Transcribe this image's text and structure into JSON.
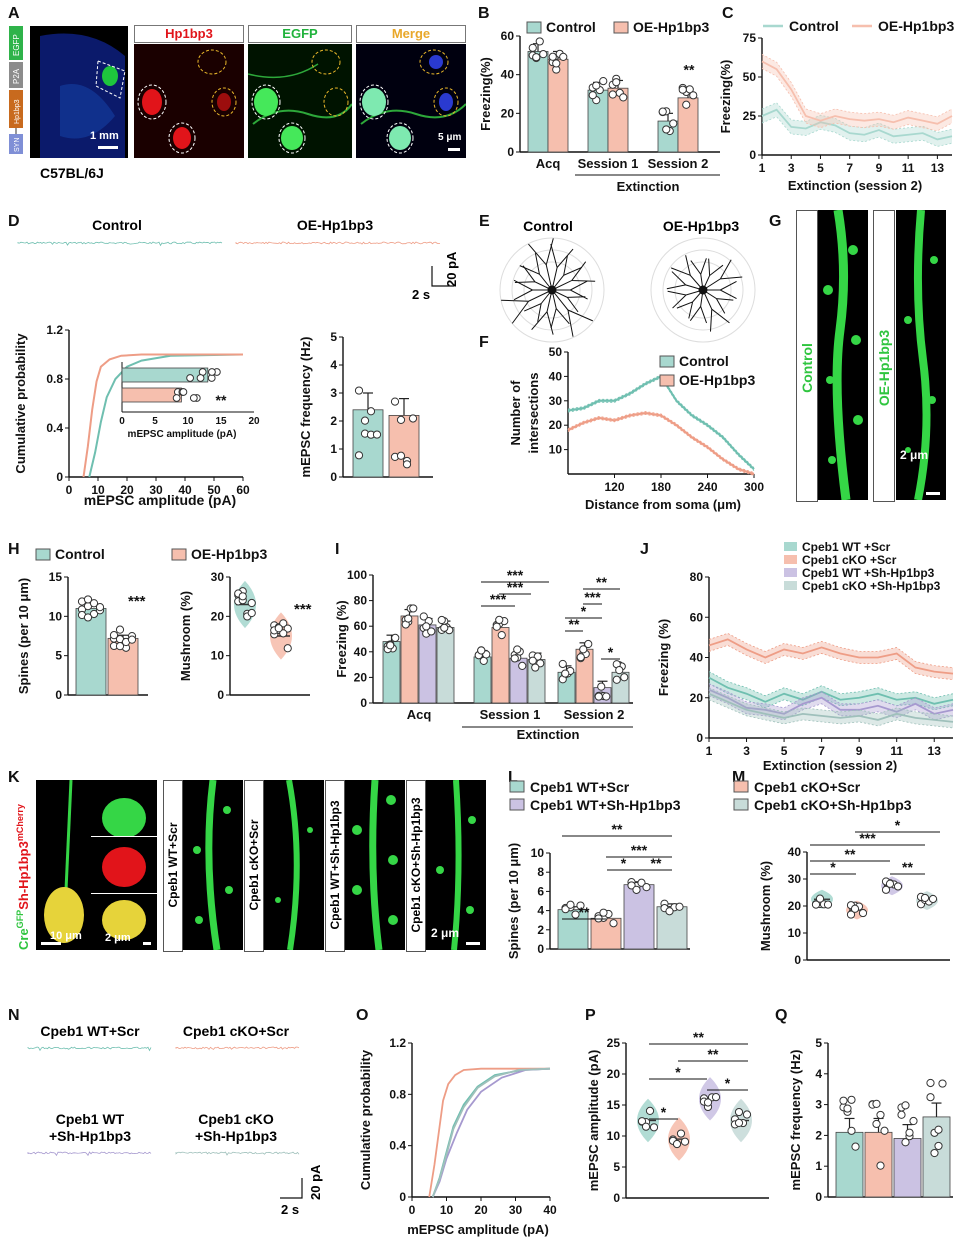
{
  "colors": {
    "control": "#a8d8cf",
    "control_dark": "#6fbfb0",
    "oe": "#f6bfae",
    "oe_dark": "#ee9d86",
    "cpeb_wt_scr": "#a8d8cf",
    "cpeb_cko_scr": "#f6bfae",
    "cpeb_wt_sh": "#cbc2e3",
    "cpeb_cko_sh": "#c8dcd9"
  },
  "panels": {
    "A": {
      "letter": "A",
      "strain": "C57BL/6J",
      "scale1": "1 mm",
      "scale2": "5 μm",
      "channels": [
        "Hp1bp3",
        "EGFP",
        "Merge"
      ],
      "construct": [
        "EGFP",
        "P2A",
        "Hp1bp3",
        "SYN"
      ]
    },
    "B": {
      "letter": "B"
    },
    "C": {
      "letter": "C"
    },
    "D": {
      "letter": "D",
      "trace_left": "Control",
      "trace_right": "OE-Hp1bp3",
      "scale_x": "2 s",
      "scale_y": "20 pA"
    },
    "E": {
      "letter": "E",
      "left": "Control",
      "right": "OE-Hp1bp3"
    },
    "F": {
      "letter": "F"
    },
    "G": {
      "letter": "G",
      "left": "Control",
      "right": "OE-Hp1bp3",
      "scale": "2 μm"
    },
    "H": {
      "letter": "H"
    },
    "I": {
      "letter": "I"
    },
    "J": {
      "letter": "J"
    },
    "K": {
      "letter": "K",
      "side": "CreGFPSh-Hp1bp3mCherry",
      "side_parts": [
        "Cre",
        "GFP",
        "Sh-Hp1bp3",
        "mCherry"
      ],
      "scale1": "10 μm",
      "scale2": "2 μm",
      "scale3": "2 μm",
      "groups": [
        "Cpeb1 WT+Scr",
        "Cpeb1 cKO+Scr",
        "Cpeb1 WT+Sh-Hp1bp3",
        "Cpeb1 cKO+Sh-Hp1bp3"
      ]
    },
    "L": {
      "letter": "L"
    },
    "M": {
      "letter": "M"
    },
    "N": {
      "letter": "N",
      "labels": [
        "Cpeb1 WT+Scr",
        "Cpeb1 cKO+Scr",
        "Cpeb1 WT",
        "+Sh-Hp1bp3",
        "Cpeb1 cKO",
        "+Sh-Hp1bp3"
      ],
      "scale_x": "2 s",
      "scale_y": "20 pA"
    },
    "O": {
      "letter": "O"
    },
    "P": {
      "letter": "P"
    },
    "Q": {
      "letter": "Q"
    }
  },
  "chart_data": [
    {
      "panel": "B",
      "type": "bar",
      "ylabel": "Freezing(%)",
      "ylim": [
        0,
        60
      ],
      "yticks": [
        0,
        20,
        40,
        60
      ],
      "categories": [
        "Acq",
        "Session 1",
        "Session 2"
      ],
      "group_label": "Extinction",
      "series": [
        {
          "name": "Control",
          "values": [
            52,
            32,
            16
          ]
        },
        {
          "name": "OE-Hp1bp3",
          "values": [
            48,
            33,
            28
          ]
        }
      ],
      "annotations": [
        {
          "category": "Session 2",
          "text": "**"
        }
      ]
    },
    {
      "panel": "C",
      "type": "line",
      "xlabel": "Extinction (session 2)",
      "ylabel": "Freezing(%)",
      "ylim": [
        0,
        75
      ],
      "yticks": [
        0,
        25,
        50,
        75
      ],
      "xticks": [
        1,
        3,
        5,
        7,
        9,
        11,
        13
      ],
      "x": [
        1,
        2,
        3,
        4,
        5,
        6,
        7,
        8,
        9,
        10,
        11,
        12,
        13,
        14
      ],
      "series": [
        {
          "name": "Control",
          "values": [
            25,
            29,
            18,
            17,
            21,
            19,
            14,
            13,
            16,
            12,
            13,
            14,
            10,
            12
          ]
        },
        {
          "name": "OE-Hp1bp3",
          "values": [
            60,
            55,
            42,
            25,
            22,
            25,
            23,
            22,
            23,
            21,
            24,
            22,
            20,
            25
          ]
        }
      ]
    },
    {
      "panel": "D",
      "type": "line",
      "xlabel": "mEPSC  amplitude (pA)",
      "ylabel": "Cumulative probability",
      "xlim": [
        0,
        60
      ],
      "ylim": [
        0,
        1.2
      ],
      "xticks": [
        0,
        10,
        20,
        30,
        40,
        50,
        60
      ],
      "yticks": [
        0.0,
        0.4,
        0.8,
        1.2
      ],
      "series": [
        {
          "name": "Control",
          "x": [
            7,
            9,
            11,
            13,
            16,
            20,
            25,
            35,
            60
          ],
          "values": [
            0,
            0.2,
            0.45,
            0.65,
            0.8,
            0.9,
            0.95,
            0.99,
            1.0
          ]
        },
        {
          "name": "OE-Hp1bp3",
          "x": [
            5,
            6.5,
            8,
            9.5,
            11,
            14,
            18,
            25,
            60
          ],
          "values": [
            0,
            0.25,
            0.55,
            0.78,
            0.9,
            0.96,
            0.99,
            1.0,
            1.0
          ]
        }
      ],
      "inset": {
        "type": "bar",
        "xlabel": "mEPSC amplitude (pA)",
        "xlim": [
          0,
          20
        ],
        "xticks": [
          0,
          5,
          10,
          15,
          20
        ],
        "series": [
          {
            "name": "Control",
            "values": [
              13
            ]
          },
          {
            "name": "OE-Hp1bp3",
            "values": [
              9
            ]
          }
        ],
        "annotations": [
          {
            "text": "**"
          }
        ]
      }
    },
    {
      "panel": "D2",
      "type": "bar",
      "ylabel": "mEPSC frequency (Hz)",
      "ylim": [
        0,
        5
      ],
      "yticks": [
        0,
        1,
        2,
        3,
        4,
        5
      ],
      "series": [
        {
          "name": "Control",
          "values": [
            2.4
          ]
        },
        {
          "name": "OE-Hp1bp3",
          "values": [
            2.2
          ]
        }
      ]
    },
    {
      "panel": "F",
      "type": "line",
      "xlabel": "Distance from soma (μm)",
      "ylabel": "Number of intersections",
      "xlim": [
        60,
        300
      ],
      "ylim": [
        0,
        50
      ],
      "xticks": [
        120,
        180,
        240,
        300
      ],
      "yticks": [
        10,
        20,
        30,
        40,
        50
      ],
      "x": [
        60,
        80,
        100,
        120,
        140,
        160,
        180,
        200,
        220,
        240,
        260,
        280,
        300
      ],
      "series": [
        {
          "name": "Control",
          "values": [
            26,
            27,
            30,
            30,
            33,
            37,
            40,
            30,
            24,
            20,
            15,
            8,
            2
          ]
        },
        {
          "name": "OE-Hp1bp3",
          "values": [
            18,
            21,
            23,
            22,
            24,
            25,
            24,
            20,
            15,
            11,
            6,
            2,
            0
          ]
        }
      ]
    },
    {
      "panel": "H1",
      "type": "bar",
      "ylabel": "Spines (per 10 μm)",
      "ylim": [
        0,
        15
      ],
      "yticks": [
        0,
        5,
        10,
        15
      ],
      "series": [
        {
          "name": "Control",
          "values": [
            11
          ]
        },
        {
          "name": "OE-Hp1bp3",
          "values": [
            7.2
          ]
        }
      ],
      "annotations": [
        {
          "text": "***"
        }
      ]
    },
    {
      "panel": "H2",
      "type": "scatter",
      "ylabel": "Mushroom (%)",
      "ylim": [
        0,
        30
      ],
      "yticks": [
        0,
        10,
        20,
        30
      ],
      "series": [
        {
          "name": "Control",
          "values": [
            23
          ]
        },
        {
          "name": "OE-Hp1bp3",
          "values": [
            15
          ]
        }
      ],
      "annotations": [
        {
          "text": "***"
        }
      ]
    },
    {
      "panel": "I",
      "type": "bar",
      "ylabel": "Freezing (%)",
      "ylim": [
        0,
        100
      ],
      "yticks": [
        0,
        20,
        40,
        60,
        80,
        100
      ],
      "categories": [
        "Acq",
        "Session 1",
        "Session 2"
      ],
      "group_label": "Extinction",
      "series": [
        {
          "name": "Cpeb1 WT +Scr",
          "values": [
            48,
            36,
            24
          ]
        },
        {
          "name": "Cpeb1 cKO +Scr",
          "values": [
            68,
            59,
            42
          ]
        },
        {
          "name": "Cpeb1 WT +Sh-Hp1bp3",
          "values": [
            61,
            35,
            12
          ]
        },
        {
          "name": "Cpeb1 cKO +Sh-Hp1bp3",
          "values": [
            59,
            34,
            24
          ]
        }
      ],
      "annotations": [
        "***",
        "***",
        "***",
        "**",
        "***",
        "*",
        "**",
        "*"
      ]
    },
    {
      "panel": "J",
      "type": "line",
      "xlabel": "Extinction (session 2)",
      "ylabel": "Freezing (%)",
      "ylim": [
        0,
        80
      ],
      "yticks": [
        0,
        20,
        40,
        60,
        80
      ],
      "xticks": [
        1,
        3,
        5,
        7,
        9,
        11,
        13
      ],
      "x": [
        1,
        2,
        3,
        4,
        5,
        6,
        7,
        8,
        9,
        10,
        11,
        12,
        13,
        14
      ],
      "series": [
        {
          "name": "Cpeb1 WT +Scr",
          "values": [
            30,
            25,
            22,
            18,
            22,
            19,
            23,
            19,
            20,
            22,
            19,
            20,
            17,
            19
          ]
        },
        {
          "name": "Cpeb1 cKO +Scr",
          "values": [
            46,
            49,
            44,
            40,
            44,
            42,
            45,
            42,
            40,
            40,
            42,
            35,
            33,
            32
          ]
        },
        {
          "name": "Cpeb1 WT +Sh-Hp1bp3",
          "values": [
            24,
            20,
            15,
            14,
            12,
            17,
            20,
            14,
            14,
            16,
            13,
            17,
            12,
            14
          ]
        },
        {
          "name": "Cpeb1 cKO +Sh-Hp1bp3",
          "values": [
            22,
            18,
            14,
            12,
            10,
            12,
            11,
            10,
            11,
            9,
            12,
            10,
            9,
            8
          ]
        }
      ]
    },
    {
      "panel": "L",
      "type": "bar",
      "ylabel": "Spines (per 10 μm)",
      "ylim": [
        0,
        10
      ],
      "yticks": [
        0,
        2,
        4,
        6,
        8,
        10
      ],
      "series": [
        {
          "name": "Cpeb1 WT+Scr",
          "values": [
            4.1
          ]
        },
        {
          "name": "Cpeb1 cKO+Scr",
          "values": [
            3.2
          ]
        },
        {
          "name": "Cpeb1 WT+Sh-Hp1bp3",
          "values": [
            6.7
          ]
        },
        {
          "name": "Cpeb1 cKO+Sh-Hp1bp3",
          "values": [
            4.4
          ]
        }
      ],
      "annotations": [
        "**",
        "**",
        "***",
        "*",
        "**"
      ]
    },
    {
      "panel": "M",
      "type": "scatter",
      "ylabel": "Mushroom (%)",
      "ylim": [
        0,
        40
      ],
      "yticks": [
        0,
        10,
        20,
        30,
        40
      ],
      "series": [
        {
          "name": "Cpeb1 WT+Scr",
          "values": [
            22.5
          ]
        },
        {
          "name": "Cpeb1 cKO+Scr",
          "values": [
            18.5
          ]
        },
        {
          "name": "Cpeb1 WT+Sh-Hp1bp3",
          "values": [
            27.5
          ]
        },
        {
          "name": "Cpeb1 cKO+Sh-Hp1bp3",
          "values": [
            22
          ]
        }
      ],
      "annotations": [
        "*",
        "***",
        "**",
        "*",
        "**"
      ]
    },
    {
      "panel": "O",
      "type": "line",
      "xlabel": "mEPSC amplitude (pA)",
      "ylabel": "Cumulative probability",
      "xlim": [
        0,
        40
      ],
      "ylim": [
        0,
        1.2
      ],
      "xticks": [
        0,
        10,
        20,
        30,
        40
      ],
      "yticks": [
        0.0,
        0.4,
        0.8,
        1.2
      ],
      "series": [
        {
          "name": "Cpeb1 WT+Scr",
          "x": [
            6,
            8,
            10,
            12,
            15,
            19,
            24,
            32,
            40
          ],
          "values": [
            0,
            0.15,
            0.35,
            0.55,
            0.72,
            0.86,
            0.95,
            0.99,
            1.0
          ]
        },
        {
          "name": "Cpeb1 cKO+Scr",
          "x": [
            5,
            6.5,
            8,
            9,
            10.5,
            12.5,
            15,
            20,
            40
          ],
          "values": [
            0,
            0.25,
            0.55,
            0.75,
            0.88,
            0.95,
            0.99,
            1.0,
            1.0
          ]
        },
        {
          "name": "Cpeb1 WT+Sh-Hp1bp3",
          "x": [
            6,
            8,
            10,
            13,
            16,
            20,
            26,
            33,
            40
          ],
          "values": [
            0,
            0.12,
            0.3,
            0.5,
            0.68,
            0.82,
            0.93,
            0.99,
            1.0
          ]
        },
        {
          "name": "Cpeb1 cKO+Sh-Hp1bp3",
          "x": [
            6,
            8,
            10,
            12,
            15,
            19,
            24,
            31,
            40
          ],
          "values": [
            0,
            0.14,
            0.33,
            0.53,
            0.7,
            0.85,
            0.94,
            0.99,
            1.0
          ]
        }
      ]
    },
    {
      "panel": "P",
      "type": "scatter",
      "ylabel": "mEPSC amplitude (pA)",
      "ylim": [
        0,
        25
      ],
      "yticks": [
        0,
        5,
        10,
        15,
        20,
        25
      ],
      "series": [
        {
          "name": "Cpeb1 WT+Scr",
          "values": [
            12.5
          ]
        },
        {
          "name": "Cpeb1 cKO+Scr",
          "values": [
            9.5
          ]
        },
        {
          "name": "Cpeb1 WT+Sh-Hp1bp3",
          "values": [
            16
          ]
        },
        {
          "name": "Cpeb1 cKO+Sh-Hp1bp3",
          "values": [
            12.5
          ]
        }
      ],
      "annotations": [
        "**",
        "**",
        "*",
        "*",
        "*"
      ]
    },
    {
      "panel": "Q",
      "type": "bar",
      "ylabel": "mEPSC frequency (Hz)",
      "ylim": [
        0,
        5
      ],
      "yticks": [
        0,
        1,
        2,
        3,
        4,
        5
      ],
      "series": [
        {
          "name": "Cpeb1 WT+Scr",
          "values": [
            2.1
          ]
        },
        {
          "name": "Cpeb1 cKO+Scr",
          "values": [
            2.1
          ]
        },
        {
          "name": "Cpeb1 WT+Sh-Hp1bp3",
          "values": [
            1.9
          ]
        },
        {
          "name": "Cpeb1 cKO+Sh-Hp1bp3",
          "values": [
            2.6
          ]
        }
      ]
    }
  ]
}
